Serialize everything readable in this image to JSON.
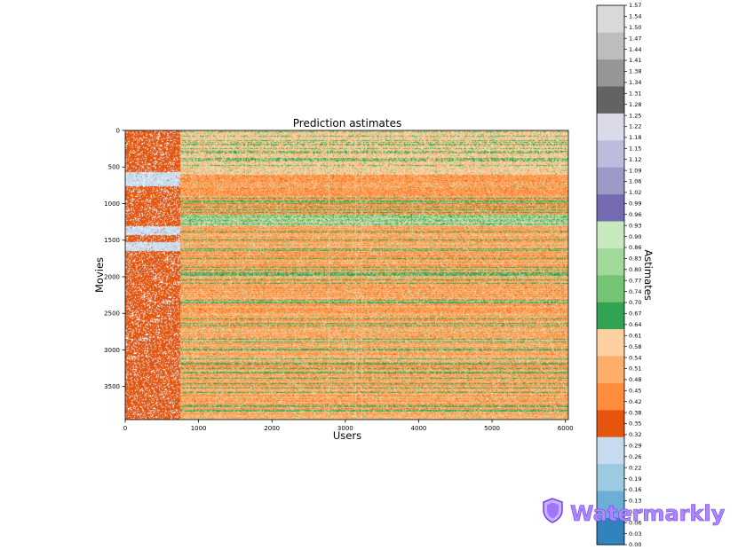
{
  "chart_data": {
    "type": "heatmap",
    "title": "Prediction astimates",
    "xlabel": "Users",
    "ylabel": "Movies",
    "colorbar_label": "Astimates",
    "xlim": [
      0,
      6040
    ],
    "ylim": [
      0,
      3952
    ],
    "y_inverted": true,
    "grid": false,
    "x_ticks": [
      "0",
      "1000",
      "2000",
      "3000",
      "4000",
      "5000",
      "6000"
    ],
    "x_tick_values": [
      0,
      1000,
      2000,
      3000,
      4000,
      5000,
      6000
    ],
    "y_ticks": [
      "0",
      "500",
      "1000",
      "1500",
      "2000",
      "2500",
      "3000",
      "3500"
    ],
    "y_tick_values": [
      0,
      500,
      1000,
      1500,
      2000,
      2500,
      3000,
      3500
    ],
    "colorbar_range": [
      0,
      1.57
    ],
    "colorbar_ticks": [
      "0.00",
      "0.03",
      "0.06",
      "0.09",
      "0.13",
      "0.16",
      "0.19",
      "0.22",
      "0.26",
      "0.29",
      "0.32",
      "0.35",
      "0.38",
      "0.42",
      "0.45",
      "0.48",
      "0.51",
      "0.54",
      "0.58",
      "0.61",
      "0.64",
      "0.67",
      "0.70",
      "0.74",
      "0.77",
      "0.80",
      "0.83",
      "0.86",
      "0.90",
      "0.93",
      "0.96",
      "0.99",
      "1.02",
      "1.06",
      "1.09",
      "1.12",
      "1.15",
      "1.18",
      "1.22",
      "1.25",
      "1.28",
      "1.31",
      "1.34",
      "1.38",
      "1.41",
      "1.44",
      "1.47",
      "1.50",
      "1.54",
      "1.57"
    ],
    "colorbar_colors": [
      "#3182bd",
      "#6baed6",
      "#9ecae1",
      "#c6dbef",
      "#e6550d",
      "#fd8d3c",
      "#fdae6b",
      "#fdd0a2",
      "#31a354",
      "#74c476",
      "#a1d99b",
      "#c7e9c0",
      "#756bb1",
      "#9e9ac8",
      "#bcbddc",
      "#dadaeb",
      "#636363",
      "#969696",
      "#bdbdbd",
      "#d9d9d9"
    ],
    "colormap": "tab20c",
    "blocks": [
      {
        "x_range": [
          0,
          620
        ],
        "y_range": [
          0,
          3952
        ],
        "dominant": "orange",
        "range": [
          0.35,
          0.45
        ],
        "note": "dark orange with light blue bands"
      },
      {
        "x_range": [
          620,
          6040
        ],
        "y_range": [
          0,
          500
        ],
        "dominant": "orange/green",
        "range": [
          0.45,
          0.7
        ]
      },
      {
        "x_range": [
          620,
          6040
        ],
        "y_range": [
          600,
          900
        ],
        "dominant": "orange",
        "range": [
          0.42,
          0.51
        ]
      },
      {
        "x_range": [
          620,
          6040
        ],
        "y_range": [
          1150,
          1300
        ],
        "dominant": "green",
        "range": [
          0.7,
          0.93
        ]
      },
      {
        "x_range": [
          620,
          6040
        ],
        "y_range": [
          1300,
          3952
        ],
        "dominant": "orange/green",
        "range": [
          0.42,
          0.7
        ]
      }
    ]
  },
  "watermark": {
    "text": "Watermarkly",
    "icon": "shield-icon",
    "color": "#a78bfa"
  }
}
